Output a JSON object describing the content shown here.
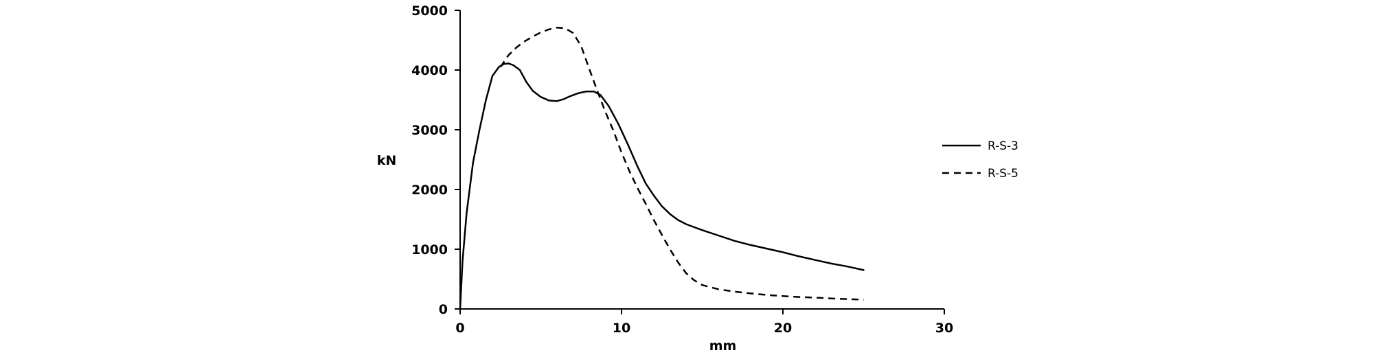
{
  "chart_data": {
    "type": "line",
    "title": "",
    "xlabel": "mm",
    "ylabel": "kN",
    "xlim": [
      0,
      30
    ],
    "ylim": [
      0,
      5000
    ],
    "x_ticks": [
      0,
      10,
      20,
      30
    ],
    "y_ticks": [
      0,
      1000,
      2000,
      3000,
      4000,
      5000
    ],
    "x_tick_labels": [
      "0",
      "10",
      "20",
      "30"
    ],
    "y_tick_labels": [
      "0",
      "1000",
      "2000",
      "3000",
      "4000",
      "5000"
    ],
    "grid": false,
    "legend_position": "right",
    "series": [
      {
        "name": "R-S-3",
        "style": "solid",
        "color": "#000000",
        "x": [
          0,
          0.15,
          0.4,
          0.8,
          1.2,
          1.6,
          2.0,
          2.4,
          2.7,
          3.0,
          3.3,
          3.7,
          4.1,
          4.5,
          5.0,
          5.5,
          6.0,
          6.4,
          6.8,
          7.3,
          7.8,
          8.3,
          8.7,
          9.2,
          9.8,
          10.4,
          11.0,
          11.5,
          12.0,
          12.5,
          13.0,
          13.5,
          14.0,
          15.0,
          16.0,
          17.0,
          18.0,
          19.0,
          20.0,
          21.0,
          22.0,
          23.0,
          24.0,
          25.0
        ],
        "y": [
          0,
          800,
          1600,
          2450,
          3000,
          3500,
          3900,
          4050,
          4100,
          4110,
          4080,
          4000,
          3800,
          3650,
          3550,
          3490,
          3480,
          3510,
          3560,
          3610,
          3640,
          3640,
          3580,
          3400,
          3100,
          2750,
          2380,
          2100,
          1900,
          1720,
          1590,
          1490,
          1420,
          1320,
          1230,
          1140,
          1070,
          1010,
          950,
          880,
          820,
          760,
          710,
          650
        ]
      },
      {
        "name": "R-S-5",
        "style": "dashed",
        "color": "#000000",
        "x": [
          2.5,
          3.0,
          3.5,
          4.0,
          4.5,
          5.0,
          5.5,
          6.0,
          6.5,
          7.0,
          7.5,
          8.0,
          8.5,
          9.0,
          9.5,
          10.0,
          10.5,
          11.0,
          11.5,
          12.0,
          12.5,
          13.0,
          13.5,
          14.0,
          14.5,
          15.0,
          16.0,
          17.0,
          18.0,
          19.0,
          20.0,
          21.0,
          22.0,
          23.0,
          24.0,
          25.0
        ],
        "y": [
          4050,
          4250,
          4380,
          4480,
          4560,
          4630,
          4680,
          4710,
          4700,
          4620,
          4400,
          4020,
          3650,
          3300,
          2980,
          2620,
          2300,
          2020,
          1760,
          1490,
          1240,
          1000,
          780,
          600,
          480,
          400,
          330,
          290,
          260,
          235,
          215,
          200,
          190,
          175,
          165,
          155
        ]
      }
    ]
  }
}
